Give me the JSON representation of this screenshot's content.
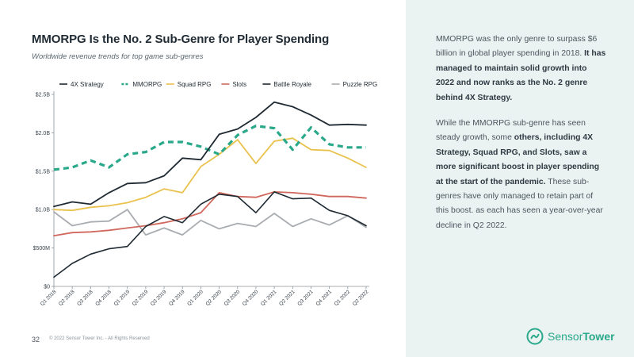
{
  "slide": {
    "title": "MMORPG Is the No. 2 Sub-Genre for Player Spending",
    "subtitle": "Worldwide revenue trends for top game sub-genres",
    "page_number": "32",
    "copyright": "© 2022 Sensor Tower Inc. - All Rights Reserved",
    "logo_text_a": "Sensor",
    "logo_text_b": "Tower"
  },
  "side_text": {
    "p1_a": "MMORPG was the only genre to surpass $6 billion in global player spending in 2018. ",
    "p1_b": "It has managed to maintain solid growth into 2022 and now ranks as the No. 2 genre behind 4X Strategy.",
    "p2_a": "While the MMORPG sub-genre has seen steady growth, some ",
    "p2_b": "others, including 4X Strategy, Squad RPG, and Slots, saw a more significant boost in player spending at the start of the pandemic.",
    "p2_c": " These sub-genres have only managed to retain part of this boost. as each has seen a year-over-year decline in Q2 2022."
  },
  "chart_data": {
    "type": "line",
    "x": [
      "Q1 2018",
      "Q2 2018",
      "Q3 2018",
      "Q4 2018",
      "Q1 2019",
      "Q2 2019",
      "Q3 2019",
      "Q4 2019",
      "Q1 2020",
      "Q2 2020",
      "Q3 2020",
      "Q4 2020",
      "Q1 2021",
      "Q2 2021",
      "Q3 2021",
      "Q4 2021",
      "Q1 2022",
      "Q2 2022"
    ],
    "ylim": [
      0,
      2.5
    ],
    "yticks": [
      0,
      0.5,
      1.0,
      1.5,
      2.0,
      2.5
    ],
    "ytick_labels": [
      "$0",
      "$500M",
      "$1.0B",
      "$1.5B",
      "$2.0B",
      "$2.5B"
    ],
    "legend_position": "top",
    "grid": false,
    "series": [
      {
        "name": "4X Strategy",
        "color": "#1f2a33",
        "dash": false,
        "values": [
          1.04,
          1.1,
          1.07,
          1.22,
          1.34,
          1.35,
          1.44,
          1.67,
          1.65,
          1.98,
          2.05,
          2.2,
          2.4,
          2.34,
          2.23,
          2.1,
          2.11,
          2.1
        ]
      },
      {
        "name": "MMORPG",
        "color": "#2aa88a",
        "dash": true,
        "values": [
          1.52,
          1.55,
          1.64,
          1.55,
          1.72,
          1.75,
          1.88,
          1.88,
          1.82,
          1.72,
          1.97,
          2.09,
          2.06,
          1.78,
          2.07,
          1.85,
          1.81,
          1.81
        ]
      },
      {
        "name": "Squad RPG",
        "color": "#e9c24e",
        "dash": false,
        "values": [
          1.0,
          0.99,
          1.03,
          1.05,
          1.09,
          1.16,
          1.27,
          1.22,
          1.56,
          1.72,
          1.91,
          1.6,
          1.89,
          1.93,
          1.78,
          1.77,
          1.67,
          1.55
        ]
      },
      {
        "name": "Slots",
        "color": "#d0685d",
        "dash": false,
        "values": [
          0.66,
          0.7,
          0.71,
          0.73,
          0.76,
          0.79,
          0.83,
          0.88,
          0.96,
          1.22,
          1.17,
          1.16,
          1.23,
          1.22,
          1.2,
          1.17,
          1.17,
          1.15
        ]
      },
      {
        "name": "Battle Royale",
        "color": "#1f2a33",
        "dash": false,
        "thin": true,
        "values": [
          0.12,
          0.3,
          0.42,
          0.49,
          0.52,
          0.78,
          0.91,
          0.83,
          1.07,
          1.2,
          1.17,
          0.96,
          1.23,
          1.14,
          1.15,
          0.99,
          0.92,
          0.79
        ]
      },
      {
        "name": "Puzzle RPG",
        "color": "#a9acb0",
        "dash": false,
        "values": [
          0.97,
          0.79,
          0.84,
          0.85,
          1.0,
          0.67,
          0.76,
          0.67,
          0.86,
          0.75,
          0.82,
          0.78,
          0.95,
          0.78,
          0.88,
          0.8,
          0.92,
          0.77
        ]
      }
    ]
  }
}
